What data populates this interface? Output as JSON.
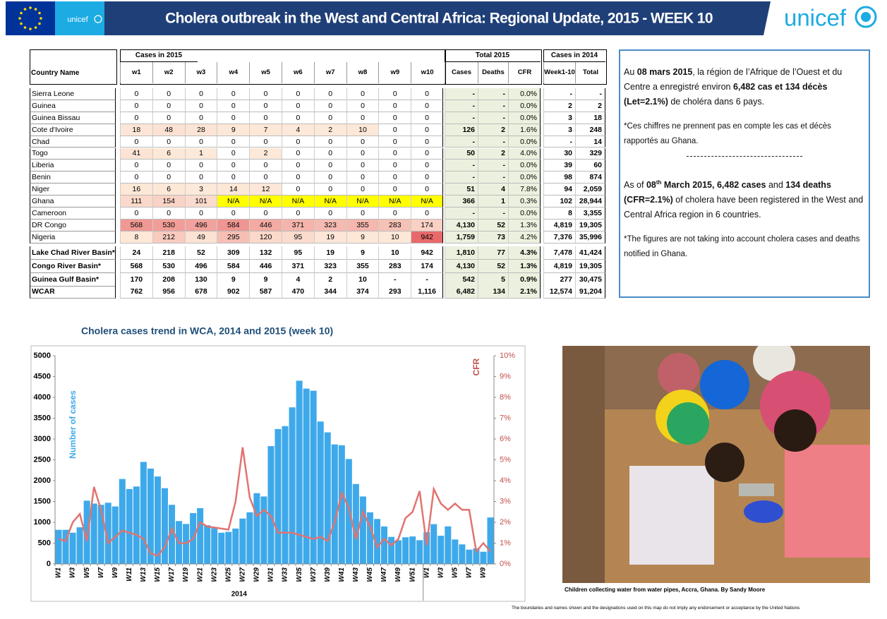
{
  "header": {
    "eu_unicef_label": "unicef",
    "title": "Cholera outbreak in the West and Central Africa: Regional Update, 2015 - WEEK 10",
    "logo": "unicef"
  },
  "table": {
    "header": {
      "country": "Country Name",
      "groups": [
        "Cases in 2015",
        "Total 2015",
        "Cases in 2014"
      ],
      "columns": [
        "w1",
        "w2",
        "w3",
        "w4",
        "w5",
        "w6",
        "w7",
        "w8",
        "w9",
        "w10",
        "Cases",
        "Deaths",
        "CFR",
        "Week1-10",
        "Total"
      ]
    },
    "rows": [
      [
        "Sierra Leone",
        "0",
        "0",
        "0",
        "0",
        "0",
        "0",
        "0",
        "0",
        "0",
        "0",
        "-",
        "-",
        "0.0%",
        "-",
        "-"
      ],
      [
        "Guinea",
        "0",
        "0",
        "0",
        "0",
        "0",
        "0",
        "0",
        "0",
        "0",
        "0",
        "-",
        "-",
        "0.0%",
        "2",
        "2"
      ],
      [
        "Guinea Bissau",
        "0",
        "0",
        "0",
        "0",
        "0",
        "0",
        "0",
        "0",
        "0",
        "0",
        "-",
        "-",
        "0.0%",
        "3",
        "18"
      ],
      [
        "Cote d'Ivoire",
        "18",
        "48",
        "28",
        "9",
        "7",
        "4",
        "2",
        "10",
        "0",
        "0",
        "126",
        "2",
        "1.6%",
        "3",
        "248"
      ],
      [
        "Chad",
        "0",
        "0",
        "0",
        "0",
        "0",
        "0",
        "0",
        "0",
        "0",
        "0",
        "-",
        "-",
        "0.0%",
        "-",
        "14"
      ],
      [
        "Togo",
        "41",
        "6",
        "1",
        "0",
        "2",
        "0",
        "0",
        "0",
        "0",
        "0",
        "50",
        "2",
        "4.0%",
        "30",
        "329"
      ],
      [
        "Liberia",
        "0",
        "0",
        "0",
        "0",
        "0",
        "0",
        "0",
        "0",
        "0",
        "0",
        "-",
        "-",
        "0.0%",
        "39",
        "60"
      ],
      [
        "Benin",
        "0",
        "0",
        "0",
        "0",
        "0",
        "0",
        "0",
        "0",
        "0",
        "0",
        "-",
        "-",
        "0.0%",
        "98",
        "874"
      ],
      [
        "Niger",
        "16",
        "6",
        "3",
        "14",
        "12",
        "0",
        "0",
        "0",
        "0",
        "0",
        "51",
        "4",
        "7.8%",
        "94",
        "2,059"
      ],
      [
        "Ghana",
        "111",
        "154",
        "101",
        "N/A",
        "N/A",
        "N/A",
        "N/A",
        "N/A",
        "N/A",
        "N/A",
        "366",
        "1",
        "0.3%",
        "102",
        "28,944"
      ],
      [
        "Cameroon",
        "0",
        "0",
        "0",
        "0",
        "0",
        "0",
        "0",
        "0",
        "0",
        "0",
        "-",
        "-",
        "0.0%",
        "8",
        "3,355"
      ],
      [
        "DR Congo",
        "568",
        "530",
        "496",
        "584",
        "446",
        "371",
        "323",
        "355",
        "283",
        "174",
        "4,130",
        "52",
        "1.3%",
        "4,819",
        "19,305"
      ],
      [
        "Nigeria",
        "8",
        "212",
        "49",
        "295",
        "120",
        "95",
        "19",
        "9",
        "10",
        "942",
        "1,759",
        "73",
        "4.2%",
        "7,376",
        "35,996"
      ]
    ],
    "basin_rows": [
      [
        "Lake Chad River Basin*",
        "24",
        "218",
        "52",
        "309",
        "132",
        "95",
        "19",
        "9",
        "10",
        "942",
        "1,810",
        "77",
        "4.3%",
        "7,478",
        "41,424"
      ],
      [
        "Congo River Basin*",
        "568",
        "530",
        "496",
        "584",
        "446",
        "371",
        "323",
        "355",
        "283",
        "174",
        "4,130",
        "52",
        "1.3%",
        "4,819",
        "19,305"
      ],
      [
        "Guinea Gulf Basin*",
        "170",
        "208",
        "130",
        "9",
        "9",
        "4",
        "2",
        "10",
        "-",
        "-",
        "542",
        "5",
        "0.9%",
        "277",
        "30,475"
      ]
    ],
    "total_row": [
      "WCAR",
      "762",
      "956",
      "678",
      "902",
      "587",
      "470",
      "344",
      "374",
      "293",
      "1,116",
      "6,482",
      "134",
      "2.1%",
      "12,574",
      "91,204"
    ]
  },
  "note": {
    "fr": [
      "Au ",
      "08 mars 2015",
      ",  la région de l’Afrique de l’Ouest et du Centre a enregistré environ  ",
      "6,482 cas et 134 décès (Let=2.1%)",
      " de choléra dans 6 pays."
    ],
    "fr_footnote": "*Ces chiffres ne prennent pas en compte les cas et décès rapportés au Ghana.",
    "en": [
      "As of ",
      "08",
      "th",
      " March 2015,  ",
      "6,482 cases",
      " and  ",
      "134 deaths (CFR=2.1%)",
      " of cholera have been registered in the West and Central Africa region in 6 countries."
    ],
    "en_footnote": "*The figures are not taking into account cholera cases and deaths notified in Ghana."
  },
  "chart_data": {
    "type": "combo",
    "title": "Cholera cases trend in WCA, 2014 and 2015 (week 10)",
    "ylabel": "Number of cases",
    "y2label": "CFR",
    "x_group_label": "2014",
    "categories": [
      "W1",
      null,
      "W3",
      null,
      "W5",
      null,
      "W7",
      null,
      "W9",
      null,
      "W11",
      null,
      "W13",
      null,
      "W15",
      null,
      "W17",
      null,
      "W19",
      null,
      "W21",
      null,
      "W23",
      null,
      "W25",
      null,
      "W27",
      null,
      "W29",
      null,
      "W31",
      null,
      "W33",
      null,
      "W35",
      null,
      "W37",
      null,
      "W39",
      null,
      "W41",
      null,
      "W43",
      null,
      "W45",
      null,
      "W47",
      null,
      "W49",
      null,
      "W51",
      null,
      "W1",
      null,
      "W3",
      null,
      "W5",
      null,
      "W7",
      null,
      "W9",
      null
    ],
    "series": [
      {
        "type": "bar",
        "color": "#3ea9ea",
        "values": [
          820,
          820,
          750,
          880,
          1520,
          1450,
          1420,
          1470,
          1380,
          2040,
          1800,
          1860,
          2450,
          2290,
          2100,
          1820,
          1420,
          1030,
          960,
          1220,
          1340,
          930,
          860,
          750,
          770,
          850,
          1090,
          1240,
          1700,
          1620,
          2830,
          3240,
          3310,
          3760,
          4400,
          4210,
          4160,
          3420,
          3160,
          2870,
          2850,
          2520,
          1920,
          1620,
          1240,
          1080,
          900,
          650,
          570,
          640,
          660,
          570,
          762,
          956,
          678,
          902,
          587,
          470,
          344,
          374,
          293,
          1116
        ]
      },
      {
        "type": "line",
        "axis": "y2",
        "color": "#e07470",
        "values": [
          1.2,
          1.1,
          2.0,
          2.4,
          1.1,
          3.7,
          2.6,
          1.0,
          1.3,
          1.6,
          1.5,
          1.4,
          1.2,
          0.5,
          0.4,
          0.8,
          1.7,
          1.0,
          1.0,
          1.2,
          2.0,
          1.8,
          1.75,
          1.7,
          1.65,
          3.0,
          5.6,
          3.2,
          2.3,
          2.6,
          2.3,
          1.5,
          1.5,
          1.5,
          1.4,
          1.3,
          1.2,
          1.3,
          1.1,
          2.0,
          3.4,
          2.7,
          1.2,
          2.5,
          1.8,
          0.8,
          1.2,
          0.9,
          1.2,
          2.2,
          2.5,
          3.5,
          0.9,
          3.6,
          2.9,
          2.6,
          2.9,
          2.6,
          2.6,
          0.6,
          1.0,
          0.6
        ]
      }
    ],
    "ylim": [
      0,
      5000
    ],
    "yticks": [
      0,
      500,
      1000,
      1500,
      2000,
      2500,
      3000,
      3500,
      4000,
      4500,
      5000
    ],
    "y2lim": [
      0,
      10
    ],
    "y2ticks": [
      {
        "value": 0,
        "label": "0%"
      },
      {
        "value": 1,
        "label": "1%"
      },
      {
        "value": 2,
        "label": "2%"
      },
      {
        "value": 3,
        "label": "3%"
      },
      {
        "value": 4,
        "label": "4%"
      },
      {
        "value": 5,
        "label": "5%"
      },
      {
        "value": 6,
        "label": "6%"
      },
      {
        "value": 7,
        "label": "7%"
      },
      {
        "value": 8,
        "label": "8%"
      },
      {
        "value": 9,
        "label": "9%"
      },
      {
        "value": 10,
        "label": "10%"
      }
    ],
    "grid": false
  },
  "caption": "Children collecting water from water pipes, Accra, Ghana. By Sandy Moore",
  "footer": "The boundaries and names shown and the designations used on this map do not imply any endorsement or acceptance by the United Nations"
}
